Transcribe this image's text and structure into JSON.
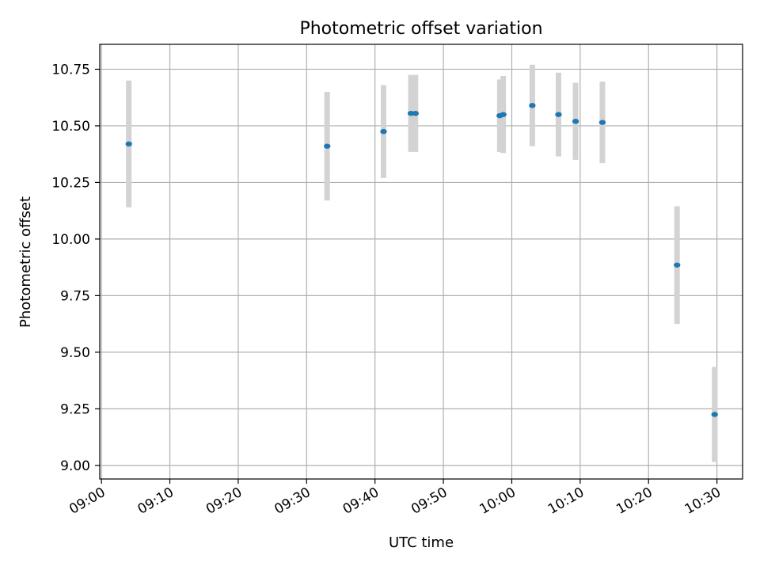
{
  "chart_data": {
    "type": "scatter",
    "title": "Photometric offset variation",
    "xlabel": "UTC time",
    "ylabel": "Photometric offset",
    "x_tick_labels": [
      "09:00",
      "09:10",
      "09:20",
      "09:30",
      "09:40",
      "09:50",
      "10:00",
      "10:10",
      "10:20",
      "10:30"
    ],
    "y_tick_labels": [
      "9.00",
      "9.25",
      "9.50",
      "9.75",
      "10.00",
      "10.25",
      "10.50",
      "10.75"
    ],
    "xlim": [
      "08:59:45",
      "10:33:45"
    ],
    "ylim": [
      8.94,
      10.86
    ],
    "grid": true,
    "marker_color": "#1f77b4",
    "errorbar_color": "#d3d3d3",
    "series": [
      {
        "points": [
          {
            "x": "09:04:00",
            "y": 10.42,
            "err": 0.28
          },
          {
            "x": "09:33:00",
            "y": 10.41,
            "err": 0.24
          },
          {
            "x": "09:41:15",
            "y": 10.475,
            "err": 0.205
          },
          {
            "x": "09:45:15",
            "y": 10.555,
            "err": 0.17
          },
          {
            "x": "09:45:55",
            "y": 10.555,
            "err": 0.17
          },
          {
            "x": "09:58:15",
            "y": 10.545,
            "err": 0.16
          },
          {
            "x": "09:58:45",
            "y": 10.55,
            "err": 0.17
          },
          {
            "x": "10:03:00",
            "y": 10.59,
            "err": 0.18
          },
          {
            "x": "10:06:50",
            "y": 10.55,
            "err": 0.185
          },
          {
            "x": "10:09:20",
            "y": 10.52,
            "err": 0.17
          },
          {
            "x": "10:13:15",
            "y": 10.515,
            "err": 0.18
          },
          {
            "x": "10:24:10",
            "y": 9.885,
            "err": 0.26
          },
          {
            "x": "10:29:40",
            "y": 9.225,
            "err": 0.21
          }
        ]
      }
    ]
  }
}
